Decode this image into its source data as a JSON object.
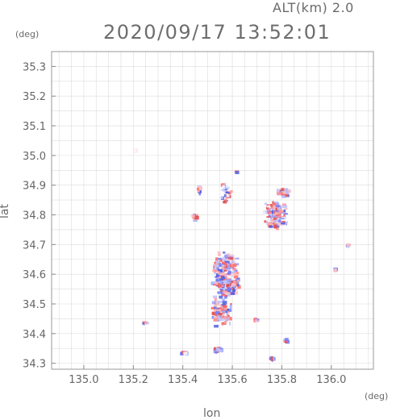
{
  "header": {
    "altitude_label": "ALT(km) 2.0",
    "timestamp": "2020/09/17 13:52:01",
    "y_unit": "(deg)",
    "x_unit": "(deg)"
  },
  "axes": {
    "xlabel": "lon",
    "ylabel": "lat",
    "x_ticks": [
      "135.0",
      "135.2",
      "135.4",
      "135.6",
      "135.8",
      "136.0"
    ],
    "y_ticks": [
      "34.3",
      "34.4",
      "34.5",
      "34.6",
      "34.7",
      "34.8",
      "34.9",
      "35.0",
      "35.1",
      "35.2",
      "35.3"
    ],
    "xlim": [
      134.87,
      136.17
    ],
    "ylim": [
      34.28,
      35.35
    ]
  },
  "colors": {
    "grid": "#dcdcdc",
    "frame": "#9a9a9a",
    "positive": "#ff7070",
    "negative": "#7080ff"
  },
  "map_layer": {
    "type": "radar-doppler-velocity-scatter",
    "clusters": [
      {
        "lon": 135.57,
        "lat": 34.6,
        "spread_lon": 0.06,
        "spread_lat": 0.09,
        "density": 520
      },
      {
        "lon": 135.55,
        "lat": 34.48,
        "spread_lon": 0.05,
        "spread_lat": 0.06,
        "density": 160
      },
      {
        "lon": 135.77,
        "lat": 34.8,
        "spread_lon": 0.055,
        "spread_lat": 0.055,
        "density": 260
      },
      {
        "lon": 135.8,
        "lat": 34.88,
        "spread_lon": 0.03,
        "spread_lat": 0.02,
        "density": 60
      },
      {
        "lon": 135.57,
        "lat": 34.88,
        "spread_lon": 0.03,
        "spread_lat": 0.04,
        "density": 40
      },
      {
        "lon": 135.46,
        "lat": 34.89,
        "spread_lon": 0.01,
        "spread_lat": 0.02,
        "density": 12
      },
      {
        "lon": 135.44,
        "lat": 34.8,
        "spread_lon": 0.01,
        "spread_lat": 0.02,
        "density": 10
      },
      {
        "lon": 135.69,
        "lat": 34.45,
        "spread_lon": 0.015,
        "spread_lat": 0.01,
        "density": 10
      },
      {
        "lon": 135.81,
        "lat": 34.38,
        "spread_lon": 0.01,
        "spread_lat": 0.01,
        "density": 10
      },
      {
        "lon": 135.75,
        "lat": 34.32,
        "spread_lon": 0.02,
        "spread_lat": 0.008,
        "density": 14
      },
      {
        "lon": 135.54,
        "lat": 34.35,
        "spread_lon": 0.025,
        "spread_lat": 0.01,
        "density": 40
      },
      {
        "lon": 135.4,
        "lat": 34.34,
        "spread_lon": 0.02,
        "spread_lat": 0.005,
        "density": 14
      },
      {
        "lon": 135.24,
        "lat": 34.44,
        "spread_lon": 0.01,
        "spread_lat": 0.005,
        "density": 8
      },
      {
        "lon": 136.06,
        "lat": 34.7,
        "spread_lon": 0.008,
        "spread_lat": 0.006,
        "density": 8
      },
      {
        "lon": 136.01,
        "lat": 34.62,
        "spread_lon": 0.005,
        "spread_lat": 0.005,
        "density": 4
      },
      {
        "lon": 135.2,
        "lat": 35.02,
        "spread_lon": 0.005,
        "spread_lat": 0.005,
        "density": 4
      },
      {
        "lon": 135.61,
        "lat": 34.95,
        "spread_lon": 0.008,
        "spread_lat": 0.005,
        "density": 4
      }
    ]
  }
}
